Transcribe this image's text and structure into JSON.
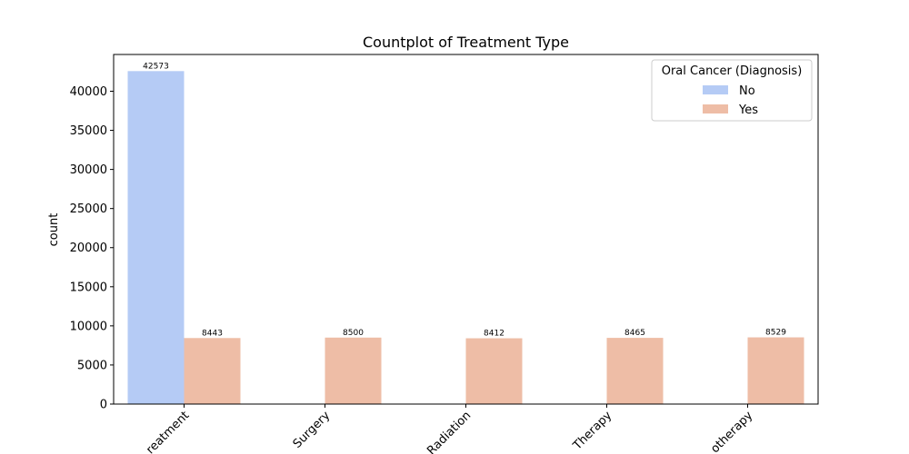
{
  "chart_data": {
    "type": "bar",
    "title": "Countplot of Treatment Type",
    "xlabel": "",
    "ylabel": "count",
    "categories": [
      "No Treatment",
      "Surgery",
      "Radiation",
      "Targeted Therapy",
      "Chemotherapy"
    ],
    "visible_category_labels": [
      "reatment",
      "Surgery",
      "Radiation",
      "Therapy",
      "otherapy"
    ],
    "series": [
      {
        "name": "No",
        "color": "#b5cbf5",
        "values": [
          42573,
          0,
          0,
          0,
          0
        ]
      },
      {
        "name": "Yes",
        "color": "#eebda6",
        "values": [
          8443,
          8500,
          8412,
          8465,
          8529
        ]
      }
    ],
    "ylim": [
      0,
      44700
    ],
    "yticks": [
      0,
      5000,
      10000,
      15000,
      20000,
      25000,
      30000,
      35000,
      40000
    ],
    "grid": false,
    "legend": {
      "title": "Oral Cancer (Diagnosis)",
      "placement": "top-right"
    },
    "x_tick_rotation": 45
  }
}
